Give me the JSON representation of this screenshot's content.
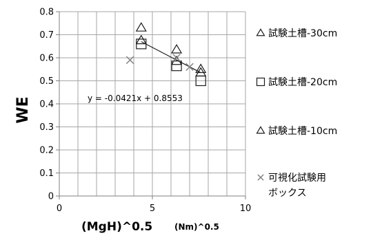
{
  "chart_data": {
    "type": "scatter",
    "xlabel": "(MgH)^0.5",
    "xlabel_unit": "(Nm)^0.5",
    "ylabel": "WE",
    "xlim": [
      0,
      10
    ],
    "ylim": [
      0,
      0.8
    ],
    "x_ticks": [
      "0",
      "5",
      "10"
    ],
    "y_ticks": [
      "0",
      "0.1",
      "0.2",
      "0.3",
      "0.4",
      "0.5",
      "0.6",
      "0.7",
      "0.8"
    ],
    "grid": true,
    "legend_position": "right",
    "series": [
      {
        "name": "試験土槽-30cm",
        "marker": "triangle",
        "points": [
          [
            4.4,
            0.73
          ],
          [
            6.3,
            0.635
          ],
          [
            7.6,
            0.55
          ]
        ]
      },
      {
        "name": "試験土槽-20cm",
        "marker": "square",
        "points": [
          [
            4.4,
            0.66
          ],
          [
            6.3,
            0.565
          ],
          [
            7.6,
            0.5
          ]
        ]
      },
      {
        "name": "試験土槽-10cm",
        "marker": "triangle",
        "points": [
          [
            4.4,
            0.675
          ],
          [
            6.3,
            0.585
          ],
          [
            7.6,
            0.535
          ]
        ]
      },
      {
        "name": "可視化試験用ボックス",
        "marker": "x",
        "points": [
          [
            3.8,
            0.59
          ],
          [
            6.3,
            0.6
          ],
          [
            7.0,
            0.56
          ]
        ]
      }
    ],
    "trendline": {
      "label": "y = -0.0421x + 0.8553",
      "slope": -0.0421,
      "intercept": 0.8553,
      "x_range": [
        4.4,
        7.6
      ]
    },
    "colors": {
      "marker": "#1a1a1a",
      "grid": "#a6a6a6",
      "axis": "#7f7f7f",
      "trendline": "#1a1a1a",
      "x_marker": "#7f7f7f"
    }
  }
}
